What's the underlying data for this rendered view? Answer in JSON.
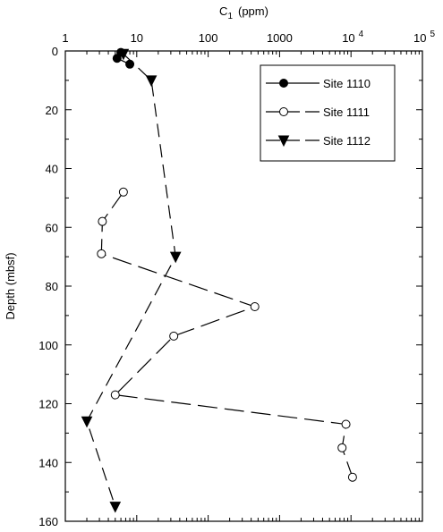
{
  "chart_data": {
    "type": "scatter",
    "xlabel": "C",
    "xlabel_sub": "1",
    "xlabel_unit": "(ppm)",
    "ylabel": "Depth (mbsf)",
    "xscale": "log",
    "xlim": [
      1,
      100000
    ],
    "ylim": [
      0,
      160
    ],
    "y_inverted": true,
    "x_axis_position": "top",
    "x_ticks": [
      {
        "value": 1,
        "label": "1"
      },
      {
        "value": 10,
        "label": "10"
      },
      {
        "value": 100,
        "label": "100"
      },
      {
        "value": 1000,
        "label": "1000"
      },
      {
        "value": 10000,
        "label": "10",
        "sup": "4"
      },
      {
        "value": 100000,
        "label": "10",
        "sup": "5"
      }
    ],
    "y_ticks": [
      0,
      20,
      40,
      60,
      80,
      100,
      120,
      140,
      160
    ],
    "legend_position": "top-right",
    "series": [
      {
        "name": "Site  1110",
        "marker": "filled-circle",
        "line": "solid",
        "points": [
          [
            6.0,
            0.5
          ],
          [
            5.3,
            2.5
          ],
          [
            8.0,
            4.5
          ]
        ]
      },
      {
        "name": "Site  1111",
        "marker": "open-circle",
        "line": "long-dash",
        "points": [
          [
            6.5,
            48
          ],
          [
            3.3,
            58
          ],
          [
            3.2,
            69
          ],
          [
            450,
            87
          ],
          [
            33,
            97
          ],
          [
            5,
            117
          ],
          [
            8500,
            127
          ],
          [
            7500,
            135
          ],
          [
            10500,
            145
          ]
        ]
      },
      {
        "name": "Site  1112",
        "marker": "filled-triangle-down",
        "line": "dash",
        "points": [
          [
            6.5,
            1
          ],
          [
            16,
            10
          ],
          [
            35,
            70
          ],
          [
            2,
            126
          ],
          [
            5,
            155
          ]
        ]
      }
    ]
  }
}
